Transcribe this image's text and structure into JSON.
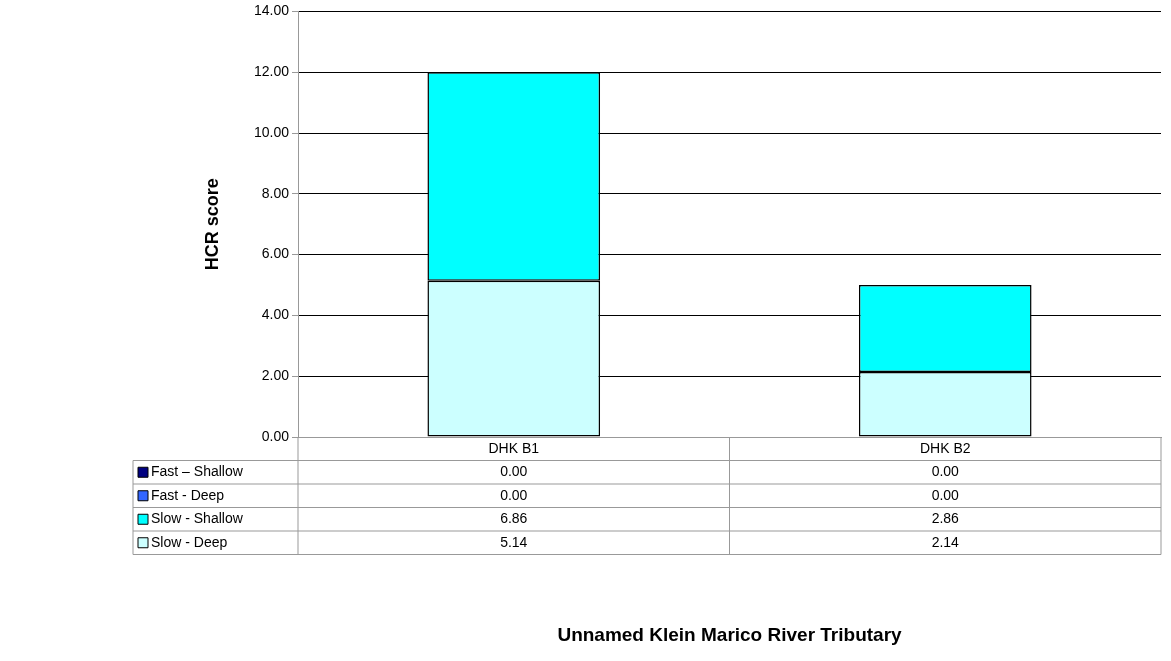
{
  "chart_data": {
    "type": "bar",
    "stacked": true,
    "annotations": [
      "Unnamed Klein Marico River Tributary"
    ],
    "ylabel": "HCR score",
    "categories": [
      "DHK B1",
      "DHK B2"
    ],
    "series": [
      {
        "name": "Slow - Deep",
        "color": "#ccffff",
        "values": [
          5.14,
          2.14
        ],
        "value_labels": [
          "5.14",
          "2.14"
        ]
      },
      {
        "name": "Slow - Shallow",
        "color": "#00ffff",
        "values": [
          6.86,
          2.86
        ],
        "value_labels": [
          "6.86",
          "2.86"
        ]
      },
      {
        "name": "Fast - Deep",
        "color": "#3366ff",
        "values": [
          0,
          0
        ],
        "value_labels": [
          "0.00",
          "0.00"
        ]
      },
      {
        "name": "Fast – Shallow",
        "color": "#000080",
        "values": [
          0,
          0
        ],
        "value_labels": [
          "0.00",
          "0.00"
        ]
      }
    ],
    "ylim": [
      0,
      14
    ],
    "yticks": [
      {
        "value": 0,
        "label": "0.00"
      },
      {
        "value": 2,
        "label": "2.00"
      },
      {
        "value": 4,
        "label": "4.00"
      },
      {
        "value": 6,
        "label": "6.00"
      },
      {
        "value": 8,
        "label": "8.00"
      },
      {
        "value": 10,
        "label": "10.00"
      },
      {
        "value": 12,
        "label": "12.00"
      },
      {
        "value": 14,
        "label": "14.00"
      }
    ],
    "grid": "y",
    "legend": "bottom left"
  }
}
